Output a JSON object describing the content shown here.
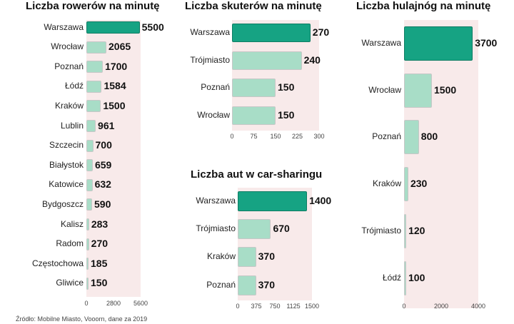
{
  "source_note": "Źródło: Mobilne Miasto, Vooorn, dane za 2019",
  "colors": {
    "accent": "#16a383",
    "bar": "#a8ddc7",
    "plot_background": "#f8eaea"
  },
  "chart_data": [
    {
      "id": "bikes",
      "type": "bar",
      "orientation": "horizontal",
      "title": "Liczba rowerów na minutę",
      "categories": [
        "Warszawa",
        "Wrocław",
        "Poznań",
        "Łódź",
        "Kraków",
        "Lublin",
        "Szczecin",
        "Białystok",
        "Katowice",
        "Bydgoszcz",
        "Kalisz",
        "Radom",
        "Częstochowa",
        "Gliwice"
      ],
      "values": [
        5500,
        2065,
        1700,
        1584,
        1500,
        961,
        700,
        659,
        632,
        590,
        283,
        270,
        185,
        150
      ],
      "xlim": [
        0,
        5600
      ],
      "xticks": [
        0,
        2800,
        5600
      ],
      "highlight": "Warszawa"
    },
    {
      "id": "scooters",
      "type": "bar",
      "orientation": "horizontal",
      "title": "Liczba skuterów na minutę",
      "categories": [
        "Warszawa",
        "Trójmiasto",
        "Poznań",
        "Wrocław"
      ],
      "values": [
        270,
        240,
        150,
        150
      ],
      "xlim": [
        0,
        300
      ],
      "xticks": [
        0,
        75,
        150,
        225,
        300
      ],
      "highlight": "Warszawa"
    },
    {
      "id": "cars",
      "type": "bar",
      "orientation": "horizontal",
      "title": "Liczba aut w car-sharingu",
      "categories": [
        "Warszawa",
        "Trójmiasto",
        "Kraków",
        "Poznań"
      ],
      "values": [
        1400,
        670,
        370,
        370
      ],
      "xlim": [
        0,
        1500
      ],
      "xticks": [
        0,
        375,
        750,
        1125,
        1500
      ],
      "highlight": "Warszawa"
    },
    {
      "id": "kick_scooters",
      "type": "bar",
      "orientation": "horizontal",
      "title": "Liczba hulajnóg na minutę",
      "categories": [
        "Warszawa",
        "Wrocław",
        "Poznań",
        "Kraków",
        "Trójmiasto",
        "Łódź"
      ],
      "values": [
        3700,
        1500,
        800,
        230,
        120,
        100
      ],
      "xlim": [
        0,
        4000
      ],
      "xticks": [
        0,
        2000,
        4000
      ],
      "highlight": "Warszawa"
    }
  ]
}
